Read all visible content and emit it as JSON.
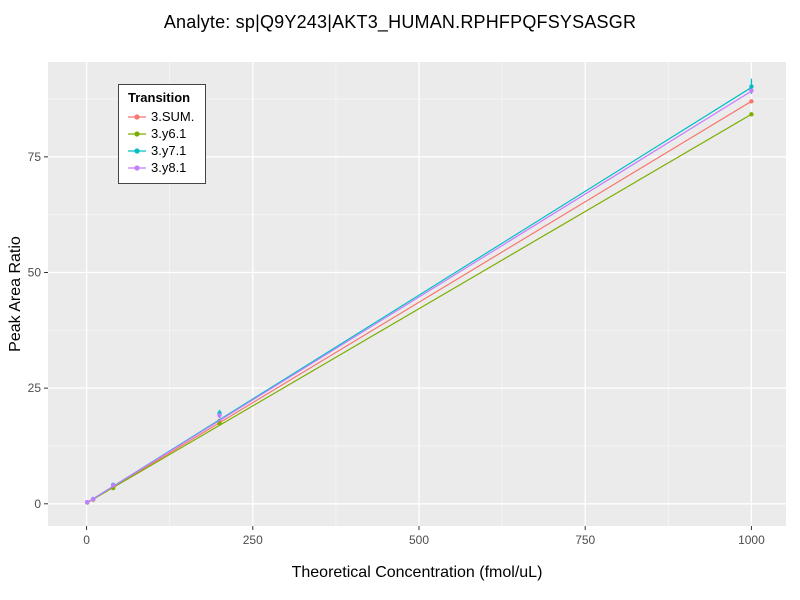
{
  "chart_data": {
    "type": "scatter",
    "title": "Analyte: sp|Q9Y243|AKT3_HUMAN.RPHFPQFSYSASGR",
    "xlabel": "Theoretical Concentration (fmol/uL)",
    "ylabel": "Peak Area Ratio",
    "xlim": [
      -58,
      1052
    ],
    "ylim": [
      -4.8,
      95.5
    ],
    "x_major_ticks": [
      0,
      250,
      500,
      750,
      1000
    ],
    "x_minor_ticks": [
      125,
      375,
      625,
      875
    ],
    "y_major_ticks": [
      0,
      25,
      50,
      75
    ],
    "y_minor_ticks": [
      12.5,
      37.5,
      62.5,
      87.5
    ],
    "panel_bg": "#EBEBEB",
    "grid_major": "#FFFFFF",
    "grid_minor": "#F7F7F7",
    "tick_label_color": "#4D4D4D",
    "legend": {
      "title": "Transition",
      "position": "top-left-inside"
    },
    "series": [
      {
        "name": "3.SUM.",
        "color": "#F8766D",
        "x": [
          1,
          10,
          40,
          200,
          1000
        ],
        "y": [
          0.3,
          1.0,
          3.6,
          17.9,
          87.0
        ],
        "line": [
          [
            0,
            0.15
          ],
          [
            1000,
            87.0
          ]
        ],
        "bars": []
      },
      {
        "name": "3.y6.1",
        "color": "#7CAE00",
        "x": [
          1,
          10,
          40,
          200,
          1000
        ],
        "y": [
          0.3,
          0.9,
          3.4,
          17.4,
          84.2
        ],
        "line": [
          [
            0,
            0.15
          ],
          [
            1000,
            84.2
          ]
        ],
        "bars": []
      },
      {
        "name": "3.y7.1",
        "color": "#00BFC4",
        "x": [
          1,
          10,
          40,
          200,
          1000
        ],
        "y": [
          0.35,
          1.05,
          4.1,
          19.6,
          90.2
        ],
        "line": [
          [
            0,
            0.2
          ],
          [
            1000,
            90.0
          ]
        ],
        "bars": [
          [
            200,
            18.9,
            20.3
          ],
          [
            1000,
            88.6,
            91.9
          ]
        ]
      },
      {
        "name": "3.y8.1",
        "color": "#C77CFF",
        "x": [
          1,
          10,
          40,
          200,
          1000
        ],
        "y": [
          0.35,
          1.0,
          4.0,
          19.1,
          89.3
        ],
        "line": [
          [
            0,
            0.2
          ],
          [
            1000,
            89.2
          ]
        ],
        "bars": [
          [
            200,
            18.5,
            19.7
          ]
        ]
      }
    ]
  }
}
